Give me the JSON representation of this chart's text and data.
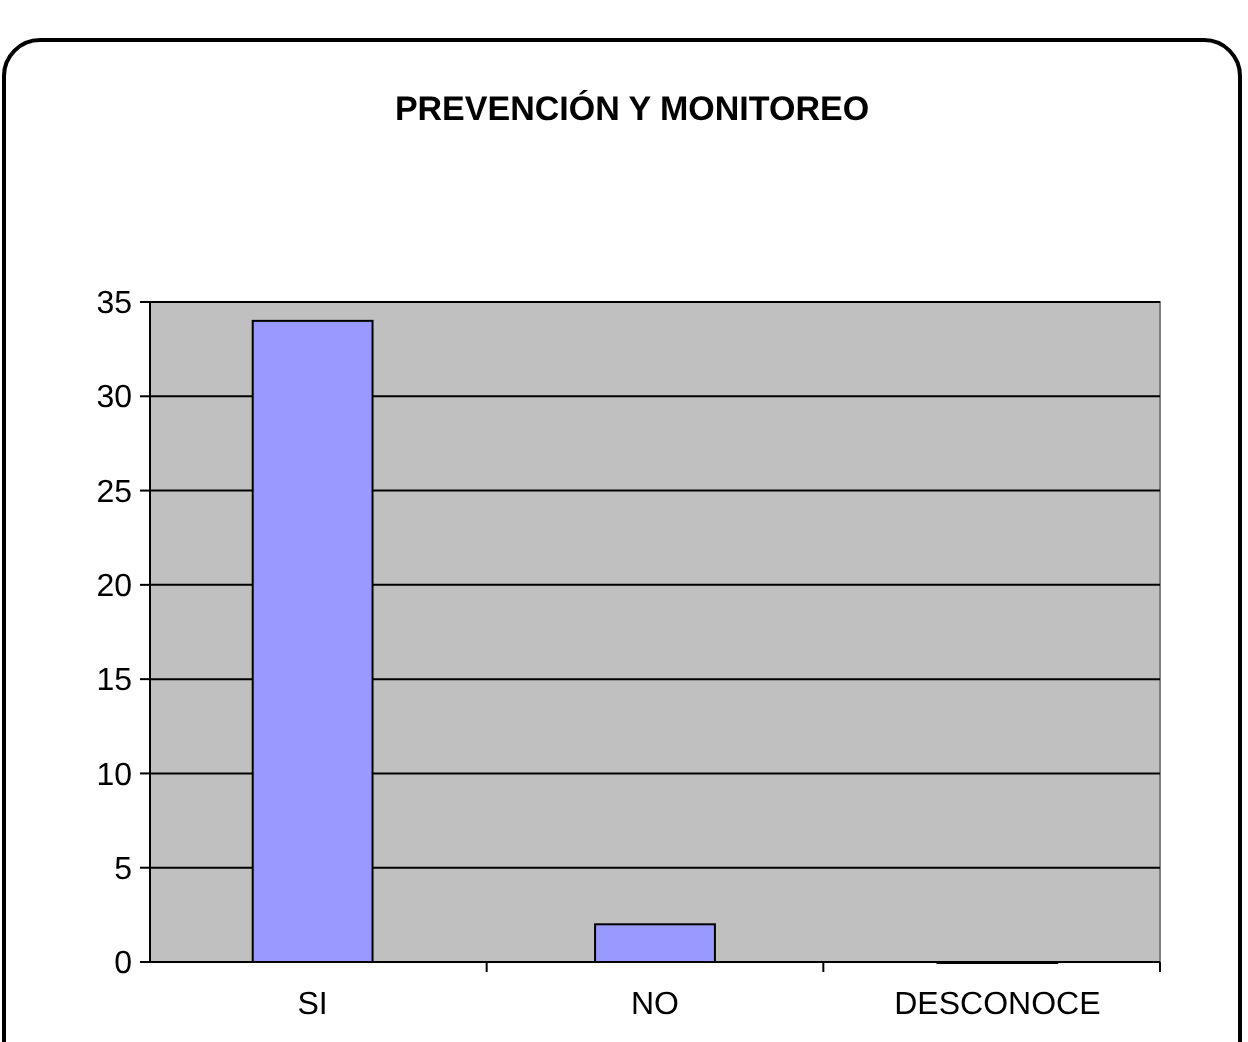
{
  "chart_data": {
    "type": "bar",
    "title": "PREVENCIÓN Y MONITOREO",
    "categories": [
      "SI",
      "NO",
      "DESCONOCE"
    ],
    "values": [
      34,
      2,
      0
    ],
    "color": "#9999ff",
    "ylim": [
      0,
      35
    ],
    "yticks": [
      0,
      5,
      10,
      15,
      20,
      25,
      30,
      35
    ],
    "grid": "y"
  }
}
